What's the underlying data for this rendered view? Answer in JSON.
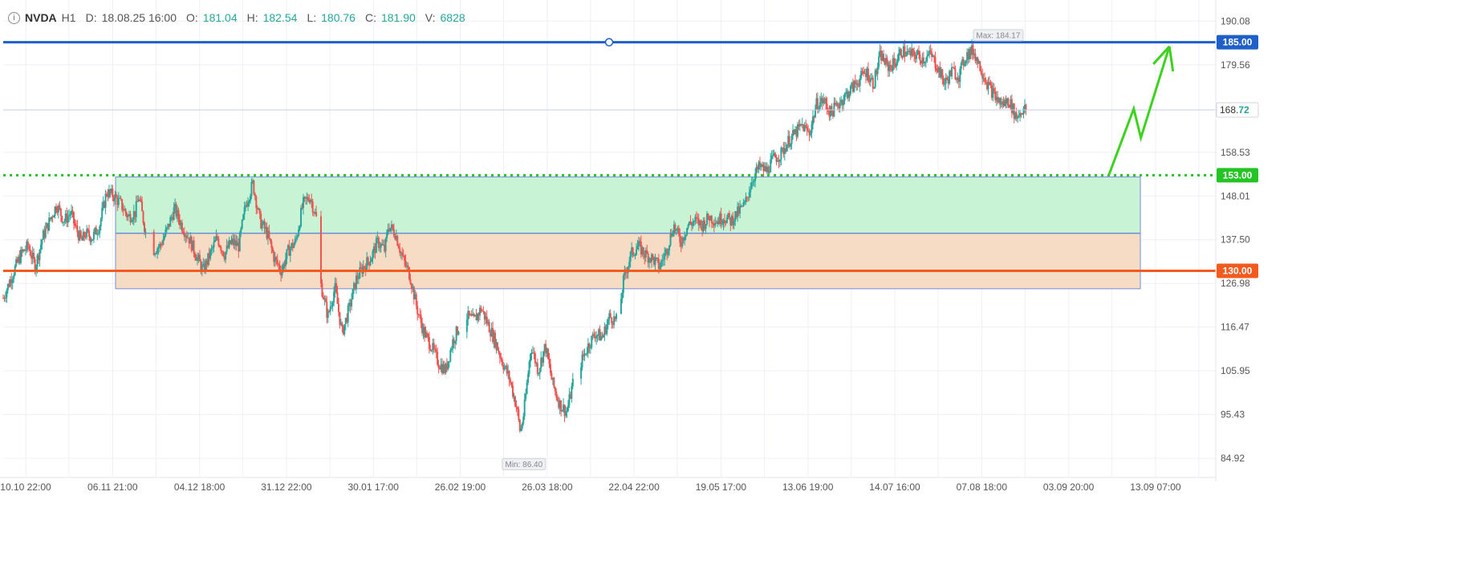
{
  "legend": {
    "symbol": "NVDA",
    "timeframe": "H1",
    "date_label": "D:",
    "date_value": "18.08.25 16:00",
    "open_label": "O:",
    "open_value": "181.04",
    "high_label": "H:",
    "high_value": "182.54",
    "low_label": "L:",
    "low_value": "180.76",
    "close_label": "C:",
    "close_value": "181.90",
    "volume_label": "V:",
    "volume_value": "6828"
  },
  "chart_data": {
    "type": "candlestick",
    "title": "",
    "xlabel": "",
    "ylabel": "",
    "ylim": [
      80.5,
      194
    ],
    "y_ticks": [
      190.08,
      179.56,
      168.72,
      158.53,
      148.01,
      137.5,
      126.98,
      116.47,
      105.95,
      95.43,
      84.92
    ],
    "x_ticks": [
      "10.10 22:00",
      "06.11 21:00",
      "04.12 18:00",
      "31.12 22:00",
      "30.01 17:00",
      "26.02 19:00",
      "26.03 18:00",
      "22.04 22:00",
      "19.05 17:00",
      "13.06 19:00",
      "14.07 16:00",
      "07.08 18:00",
      "03.09 20:00",
      "13.09 07:00"
    ],
    "grid": true,
    "price_path": [
      [
        0,
        123.5
      ],
      [
        3,
        130
      ],
      [
        5,
        134
      ],
      [
        7,
        136
      ],
      [
        9,
        131
      ],
      [
        11,
        138
      ],
      [
        13,
        142
      ],
      [
        15,
        146
      ],
      [
        17,
        142
      ],
      [
        19,
        144
      ],
      [
        20,
        141
      ],
      [
        22,
        137
      ],
      [
        23,
        139
      ],
      [
        25,
        138
      ],
      [
        27,
        141
      ],
      [
        29,
        149
      ],
      [
        31,
        148
      ],
      [
        33,
        146
      ],
      [
        35,
        143
      ],
      [
        37,
        144
      ],
      [
        38,
        148
      ],
      [
        40,
        139
      ],
      [
        42,
        135
      ],
      [
        44,
        136
      ],
      [
        46,
        140
      ],
      [
        48,
        145
      ],
      [
        50,
        141
      ],
      [
        52,
        138
      ],
      [
        54,
        134
      ],
      [
        56,
        130
      ],
      [
        58,
        134
      ],
      [
        60,
        138
      ],
      [
        62,
        134
      ],
      [
        64,
        137
      ],
      [
        66,
        136
      ],
      [
        68,
        146
      ],
      [
        70,
        151
      ],
      [
        72,
        142
      ],
      [
        74,
        139
      ],
      [
        76,
        133
      ],
      [
        78,
        130
      ],
      [
        80,
        135
      ],
      [
        82,
        137
      ],
      [
        84,
        146
      ],
      [
        86,
        148
      ],
      [
        88,
        142
      ],
      [
        89,
        127
      ],
      [
        91,
        119
      ],
      [
        93,
        126
      ],
      [
        95,
        115
      ],
      [
        97,
        121
      ],
      [
        99,
        128
      ],
      [
        101,
        131
      ],
      [
        103,
        133
      ],
      [
        105,
        137
      ],
      [
        107,
        135
      ],
      [
        108,
        141
      ],
      [
        110,
        139
      ],
      [
        112,
        133
      ],
      [
        114,
        129
      ],
      [
        116,
        121
      ],
      [
        118,
        115
      ],
      [
        120,
        112
      ],
      [
        122,
        108
      ],
      [
        124,
        106
      ],
      [
        126,
        113
      ],
      [
        128,
        117
      ],
      [
        130,
        119
      ],
      [
        132,
        118
      ],
      [
        134,
        121
      ],
      [
        136,
        117
      ],
      [
        138,
        113
      ],
      [
        140,
        108
      ],
      [
        142,
        104
      ],
      [
        144,
        97
      ],
      [
        145,
        91
      ],
      [
        146,
        96
      ],
      [
        147,
        104
      ],
      [
        148,
        112
      ],
      [
        150,
        106
      ],
      [
        152,
        112
      ],
      [
        154,
        103
      ],
      [
        156,
        98
      ],
      [
        158,
        96
      ],
      [
        160,
        104
      ],
      [
        162,
        108
      ],
      [
        164,
        112
      ],
      [
        166,
        115
      ],
      [
        168,
        114
      ],
      [
        170,
        119
      ],
      [
        172,
        118
      ],
      [
        173,
        122
      ],
      [
        174,
        128
      ],
      [
        176,
        134
      ],
      [
        178,
        136
      ],
      [
        180,
        134
      ],
      [
        182,
        133
      ],
      [
        184,
        131
      ],
      [
        186,
        135
      ],
      [
        188,
        141
      ],
      [
        190,
        137
      ],
      [
        192,
        141
      ],
      [
        194,
        142
      ],
      [
        196,
        141
      ],
      [
        198,
        143
      ],
      [
        200,
        142
      ],
      [
        202,
        143
      ],
      [
        204,
        142
      ],
      [
        206,
        144
      ],
      [
        208,
        146
      ],
      [
        210,
        152
      ],
      [
        212,
        155
      ],
      [
        214,
        154
      ],
      [
        216,
        157
      ],
      [
        218,
        158
      ],
      [
        220,
        161
      ],
      [
        222,
        163
      ],
      [
        224,
        165
      ],
      [
        226,
        163
      ],
      [
        228,
        170
      ],
      [
        230,
        171
      ],
      [
        232,
        168
      ],
      [
        234,
        170
      ],
      [
        236,
        172
      ],
      [
        238,
        174
      ],
      [
        240,
        176
      ],
      [
        242,
        178
      ],
      [
        244,
        175
      ],
      [
        246,
        182
      ],
      [
        248,
        179
      ],
      [
        250,
        180
      ],
      [
        252,
        183
      ],
      [
        254,
        182
      ],
      [
        256,
        182
      ],
      [
        258,
        181
      ],
      [
        260,
        182
      ],
      [
        262,
        179
      ],
      [
        264,
        175
      ],
      [
        266,
        178
      ],
      [
        268,
        177
      ],
      [
        270,
        182
      ],
      [
        272,
        183
      ],
      [
        274,
        179
      ],
      [
        276,
        175
      ],
      [
        278,
        172
      ],
      [
        280,
        170
      ],
      [
        282,
        171
      ],
      [
        284,
        167
      ],
      [
        286,
        169
      ],
      [
        287,
        168.72
      ]
    ],
    "price_gaps": [
      [
        40,
        42
      ],
      [
        88,
        89
      ],
      [
        128,
        130
      ],
      [
        160,
        162
      ],
      [
        172,
        173
      ]
    ],
    "x_index_range": [
      0,
      340
    ],
    "highlight_zones": [
      {
        "from": 139.1,
        "to": 152.6,
        "color": "#c8f3d4"
      },
      {
        "from": 125.7,
        "to": 139.0,
        "color": "#f6dcc4"
      }
    ],
    "levels": [
      {
        "value": 185.0,
        "label": "185.00",
        "color": "#1e5fc8",
        "style": "solid"
      },
      {
        "value": 153.0,
        "label": "153.00",
        "color": "#25c425",
        "style": "dotted"
      },
      {
        "value": 130.0,
        "label": "130.00",
        "color": "#f25a1e",
        "style": "solid"
      }
    ],
    "current_price": {
      "value": 168.72,
      "label_main": "168.",
      "label_frac": "72"
    },
    "markers": [
      {
        "label": "Max: 184.17",
        "value": 184.17,
        "index": 279
      },
      {
        "label": "Min: 86.40",
        "value": 86.4,
        "index": 146
      }
    ],
    "projection": [
      [
        310,
        153
      ],
      [
        317,
        169
      ],
      [
        319,
        162
      ],
      [
        327,
        184
      ],
      [
        328,
        178
      ]
    ],
    "colors": {
      "up": "#26a69a",
      "down": "#ef5350",
      "grid": "#eef0f6",
      "axis_text": "#555555",
      "projection": "#3cd21e"
    }
  }
}
